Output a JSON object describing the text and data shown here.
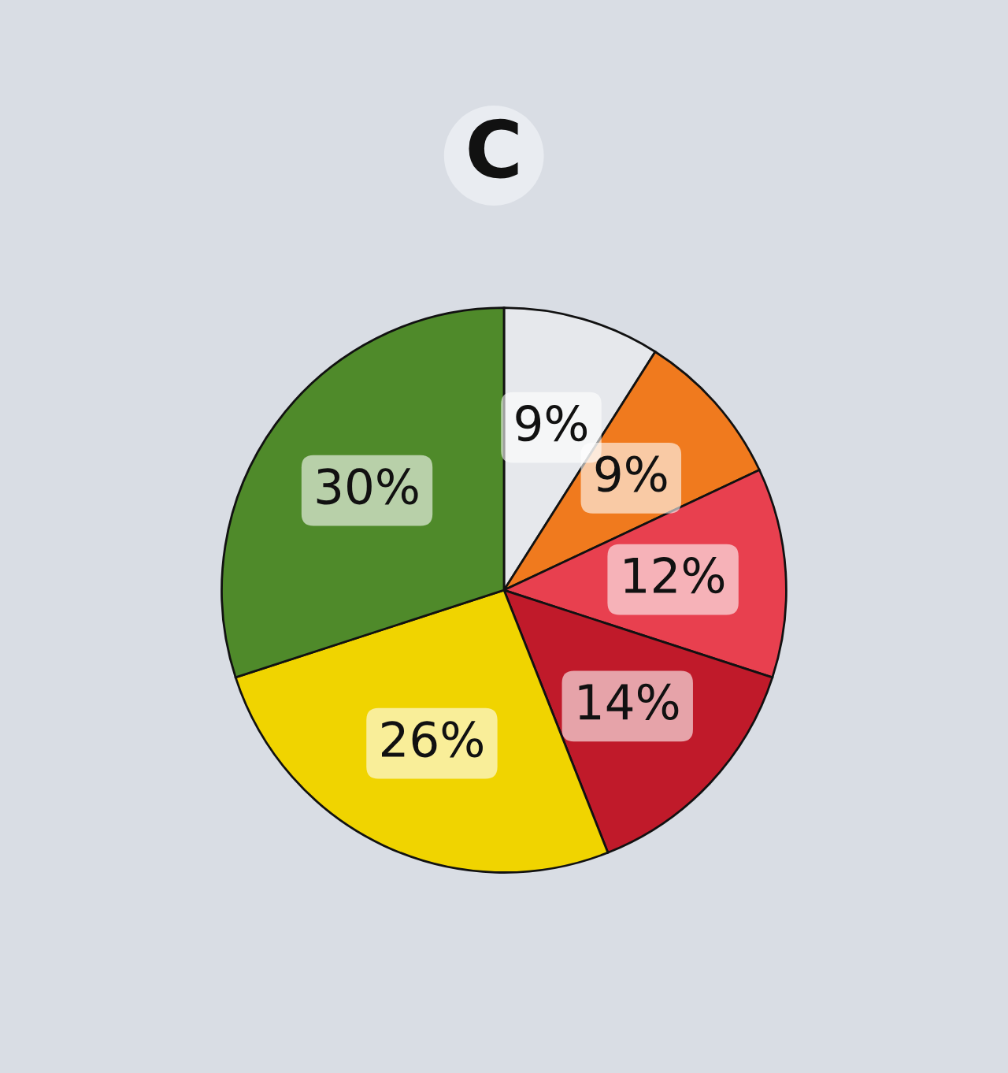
{
  "chart_data": {
    "type": "pie",
    "title": "C",
    "categories": [
      null,
      null,
      null,
      null,
      null,
      null
    ],
    "values": [
      9,
      9,
      12,
      14,
      26,
      30
    ],
    "value_labels": [
      "9%",
      "9%",
      "12%",
      "14%",
      "26%",
      "30%"
    ],
    "colors": [
      "#e6e8ec",
      "#f07a1e",
      "#e8404f",
      "#c01a2a",
      "#f0d400",
      "#4f8a2a"
    ],
    "legend": false
  }
}
